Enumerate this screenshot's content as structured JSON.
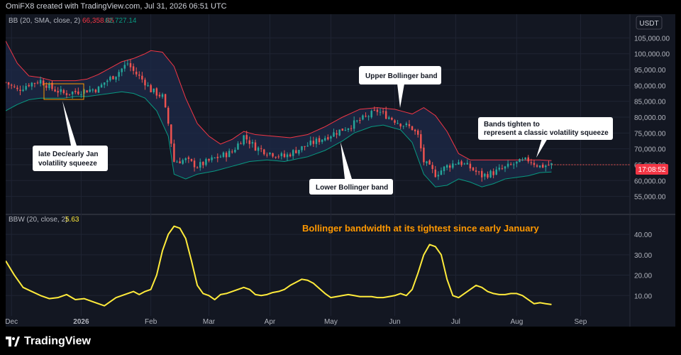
{
  "header": {
    "text": "OmiFX8 created with TradingView.com, Jul 31, 2026 06:51 UTC"
  },
  "footer": {
    "brand": "TradingView"
  },
  "colors": {
    "up": "#26a69a",
    "down": "#ef5350",
    "upper_band": "#f23645",
    "lower_band": "#089981",
    "fill": "#1e2a48",
    "bbw": "#ffeb3b",
    "annotation_orange": "#ff9800"
  },
  "chart_data": [
    {
      "type": "candlestick",
      "title": "",
      "indicator_label": "BB (20, SMA, close, 2)",
      "indicator_values": [
        "66,358.85",
        "62,727.14"
      ],
      "currency": "USDT",
      "last_price": "17:08:52",
      "ylim": [
        52000,
        108000
      ],
      "y_ticks": [
        "55,000.00",
        "60,000.00",
        "65,000.00",
        "70,000.00",
        "75,000.00",
        "80,000.00",
        "85,000.00",
        "90,000.00",
        "95,000.00",
        "100,000.00",
        "105,000.00"
      ],
      "x_ticks": [
        "Dec",
        "2026",
        "Feb",
        "Mar",
        "Apr",
        "May",
        "Jun",
        "Jul",
        "Aug",
        "Sep"
      ],
      "close_path": [
        [
          0,
          91000
        ],
        [
          4,
          88500
        ],
        [
          8,
          90500
        ],
        [
          12,
          91500
        ],
        [
          16,
          89000
        ],
        [
          20,
          87500
        ],
        [
          24,
          88000
        ],
        [
          28,
          88500
        ],
        [
          32,
          89000
        ],
        [
          34,
          91000
        ],
        [
          38,
          93500
        ],
        [
          42,
          97000
        ],
        [
          44,
          94500
        ],
        [
          48,
          91000
        ],
        [
          50,
          88500
        ],
        [
          54,
          86500
        ],
        [
          56,
          78000
        ],
        [
          58,
          66000
        ],
        [
          62,
          66500
        ],
        [
          66,
          64500
        ],
        [
          72,
          67000
        ],
        [
          78,
          69000
        ],
        [
          82,
          74000
        ],
        [
          86,
          70500
        ],
        [
          90,
          69000
        ],
        [
          96,
          67500
        ],
        [
          100,
          69500
        ],
        [
          106,
          72000
        ],
        [
          112,
          74500
        ],
        [
          118,
          77000
        ],
        [
          124,
          80000
        ],
        [
          128,
          82000
        ],
        [
          132,
          80000
        ],
        [
          136,
          78000
        ],
        [
          140,
          76500
        ],
        [
          142,
          74000
        ],
        [
          144,
          66000
        ],
        [
          148,
          62000
        ],
        [
          152,
          64500
        ],
        [
          156,
          66000
        ],
        [
          160,
          64000
        ],
        [
          164,
          61500
        ],
        [
          168,
          62500
        ],
        [
          172,
          64000
        ],
        [
          176,
          65500
        ],
        [
          180,
          66500
        ],
        [
          184,
          64500
        ],
        [
          188,
          65000
        ]
      ],
      "upper_band": [
        [
          0,
          104000
        ],
        [
          4,
          97000
        ],
        [
          8,
          93000
        ],
        [
          12,
          92500
        ],
        [
          16,
          91500
        ],
        [
          20,
          91500
        ],
        [
          24,
          91500
        ],
        [
          28,
          92000
        ],
        [
          32,
          93500
        ],
        [
          36,
          95500
        ],
        [
          40,
          97500
        ],
        [
          44,
          98500
        ],
        [
          48,
          100000
        ],
        [
          50,
          101000
        ],
        [
          54,
          100500
        ],
        [
          58,
          96000
        ],
        [
          62,
          86000
        ],
        [
          66,
          78000
        ],
        [
          70,
          74000
        ],
        [
          74,
          71500
        ],
        [
          78,
          73000
        ],
        [
          82,
          75500
        ],
        [
          86,
          74500
        ],
        [
          92,
          74000
        ],
        [
          98,
          73500
        ],
        [
          104,
          74500
        ],
        [
          110,
          77000
        ],
        [
          116,
          80000
        ],
        [
          122,
          82500
        ],
        [
          128,
          83000
        ],
        [
          134,
          82500
        ],
        [
          138,
          81500
        ],
        [
          140,
          81000
        ],
        [
          144,
          83000
        ],
        [
          148,
          80500
        ],
        [
          152,
          75500
        ],
        [
          156,
          68500
        ],
        [
          160,
          66500
        ],
        [
          166,
          66500
        ],
        [
          172,
          66500
        ],
        [
          178,
          66500
        ],
        [
          184,
          66500
        ],
        [
          188,
          66300
        ]
      ],
      "lower_band": [
        [
          0,
          82000
        ],
        [
          4,
          84000
        ],
        [
          8,
          85500
        ],
        [
          12,
          86000
        ],
        [
          16,
          86000
        ],
        [
          20,
          86000
        ],
        [
          24,
          86500
        ],
        [
          28,
          86500
        ],
        [
          32,
          87000
        ],
        [
          36,
          87500
        ],
        [
          40,
          88000
        ],
        [
          44,
          87500
        ],
        [
          48,
          86000
        ],
        [
          52,
          82000
        ],
        [
          56,
          74000
        ],
        [
          58,
          62000
        ],
        [
          62,
          60500
        ],
        [
          66,
          62000
        ],
        [
          72,
          63000
        ],
        [
          78,
          64500
        ],
        [
          84,
          66000
        ],
        [
          90,
          66500
        ],
        [
          96,
          66000
        ],
        [
          104,
          67500
        ],
        [
          110,
          69500
        ],
        [
          116,
          72500
        ],
        [
          120,
          75000
        ],
        [
          126,
          77000
        ],
        [
          130,
          77500
        ],
        [
          136,
          76000
        ],
        [
          140,
          72000
        ],
        [
          144,
          62000
        ],
        [
          148,
          58000
        ],
        [
          152,
          58500
        ],
        [
          156,
          60500
        ],
        [
          160,
          59500
        ],
        [
          164,
          58000
        ],
        [
          168,
          59000
        ],
        [
          172,
          60500
        ],
        [
          176,
          61000
        ],
        [
          180,
          61500
        ],
        [
          184,
          62500
        ],
        [
          188,
          62700
        ]
      ],
      "annotations": [
        {
          "id": "jan-squeeze",
          "lines": [
            "late Dec/early Jan",
            "volatility squeeze"
          ]
        },
        {
          "id": "upper-band",
          "lines": [
            "Upper Bollinger band"
          ]
        },
        {
          "id": "lower-band",
          "lines": [
            "Lower Bollinger band"
          ]
        },
        {
          "id": "bands-tighten",
          "lines": [
            "Bands tighten to",
            "represent a classic volatility squeeze"
          ]
        }
      ]
    },
    {
      "type": "line",
      "title": "",
      "indicator_label": "BBW (20, close, 2)",
      "indicator_value": "5.63",
      "annotation": "Bollinger bandwidth at its tightest since early January",
      "ylim": [
        0,
        47
      ],
      "y_ticks": [
        "10.00",
        "20.00",
        "30.00",
        "40.00"
      ],
      "series": [
        {
          "values": [
            [
              0,
              27
            ],
            [
              3,
              20
            ],
            [
              6,
              14
            ],
            [
              9,
              12
            ],
            [
              12,
              10
            ],
            [
              15,
              8.5
            ],
            [
              18,
              9
            ],
            [
              21,
              10.5
            ],
            [
              24,
              8
            ],
            [
              27,
              8.5
            ],
            [
              30,
              7
            ],
            [
              32,
              6
            ],
            [
              34,
              5
            ],
            [
              36,
              7
            ],
            [
              38,
              9
            ],
            [
              40,
              10
            ],
            [
              42,
              11
            ],
            [
              44,
              12
            ],
            [
              46,
              10.5
            ],
            [
              48,
              12
            ],
            [
              50,
              13
            ],
            [
              52,
              20
            ],
            [
              54,
              32
            ],
            [
              56,
              40
            ],
            [
              58,
              44
            ],
            [
              60,
              43
            ],
            [
              62,
              38
            ],
            [
              64,
              27
            ],
            [
              66,
              15
            ],
            [
              68,
              11
            ],
            [
              70,
              10
            ],
            [
              72,
              8
            ],
            [
              74,
              10.5
            ],
            [
              76,
              11
            ],
            [
              78,
              12
            ],
            [
              80,
              13
            ],
            [
              82,
              14
            ],
            [
              84,
              13
            ],
            [
              86,
              10.5
            ],
            [
              88,
              10
            ],
            [
              90,
              10.5
            ],
            [
              92,
              11.5
            ],
            [
              94,
              12
            ],
            [
              96,
              13
            ],
            [
              98,
              15
            ],
            [
              100,
              16.5
            ],
            [
              102,
              18
            ],
            [
              104,
              17.5
            ],
            [
              106,
              16
            ],
            [
              108,
              13.5
            ],
            [
              110,
              11
            ],
            [
              112,
              9
            ],
            [
              114,
              9.5
            ],
            [
              116,
              10
            ],
            [
              118,
              10.5
            ],
            [
              120,
              10
            ],
            [
              122,
              9.5
            ],
            [
              124,
              9.5
            ],
            [
              126,
              9.5
            ],
            [
              128,
              9
            ],
            [
              130,
              9
            ],
            [
              132,
              9.5
            ],
            [
              134,
              10
            ],
            [
              136,
              11
            ],
            [
              138,
              10
            ],
            [
              140,
              13
            ],
            [
              142,
              21
            ],
            [
              144,
              30
            ],
            [
              146,
              35
            ],
            [
              148,
              34
            ],
            [
              150,
              30
            ],
            [
              152,
              18
            ],
            [
              154,
              10
            ],
            [
              156,
              9
            ],
            [
              158,
              11
            ],
            [
              160,
              13
            ],
            [
              162,
              15
            ],
            [
              164,
              14
            ],
            [
              166,
              12
            ],
            [
              168,
              11
            ],
            [
              170,
              10.5
            ],
            [
              172,
              10.5
            ],
            [
              174,
              11
            ],
            [
              176,
              11
            ],
            [
              178,
              10
            ],
            [
              180,
              8
            ],
            [
              182,
              6
            ],
            [
              184,
              6.5
            ],
            [
              186,
              6
            ],
            [
              188,
              5.6
            ]
          ]
        }
      ]
    }
  ]
}
